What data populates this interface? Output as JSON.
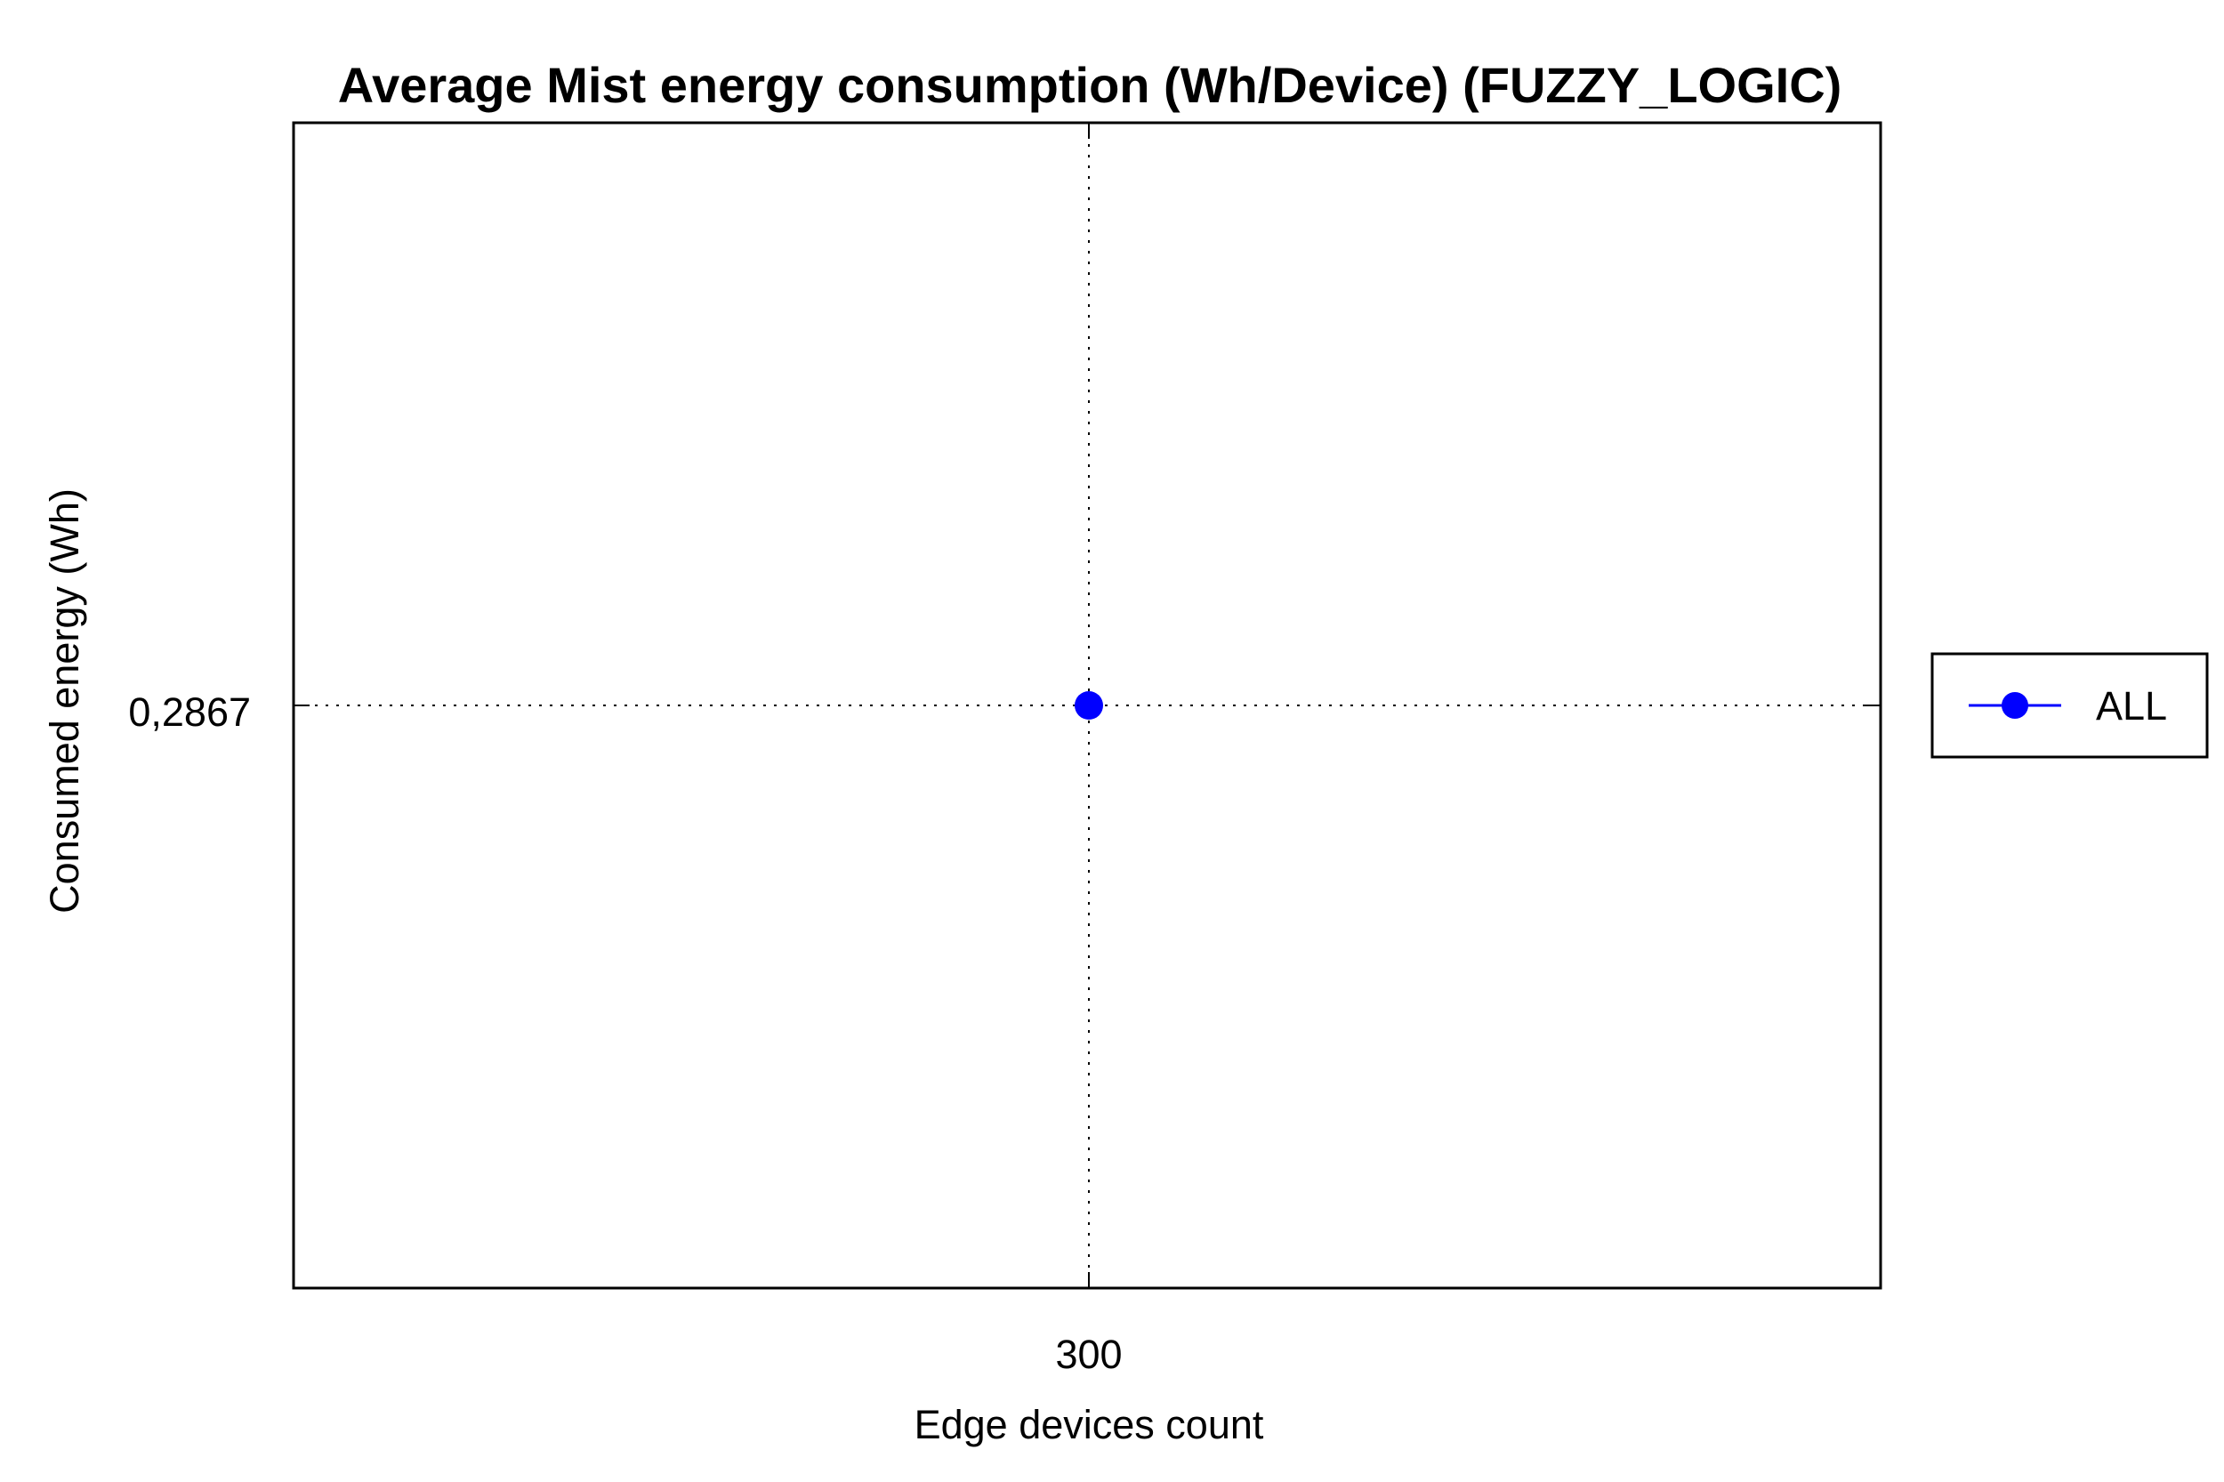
{
  "chart_data": {
    "type": "line",
    "title": "Average Mist energy consumption (Wh/Device) (FUZZY_LOGIC)",
    "xlabel": "Edge devices count",
    "ylabel": "Consumed energy (Wh)",
    "x_ticks": [
      "300"
    ],
    "y_ticks": [
      "0,2867"
    ],
    "x": [
      300
    ],
    "series": [
      {
        "name": "ALL",
        "values": [
          0.2867
        ],
        "color": "#0000ff",
        "marker": "circle"
      }
    ],
    "grid": true,
    "legend_position": "right"
  }
}
